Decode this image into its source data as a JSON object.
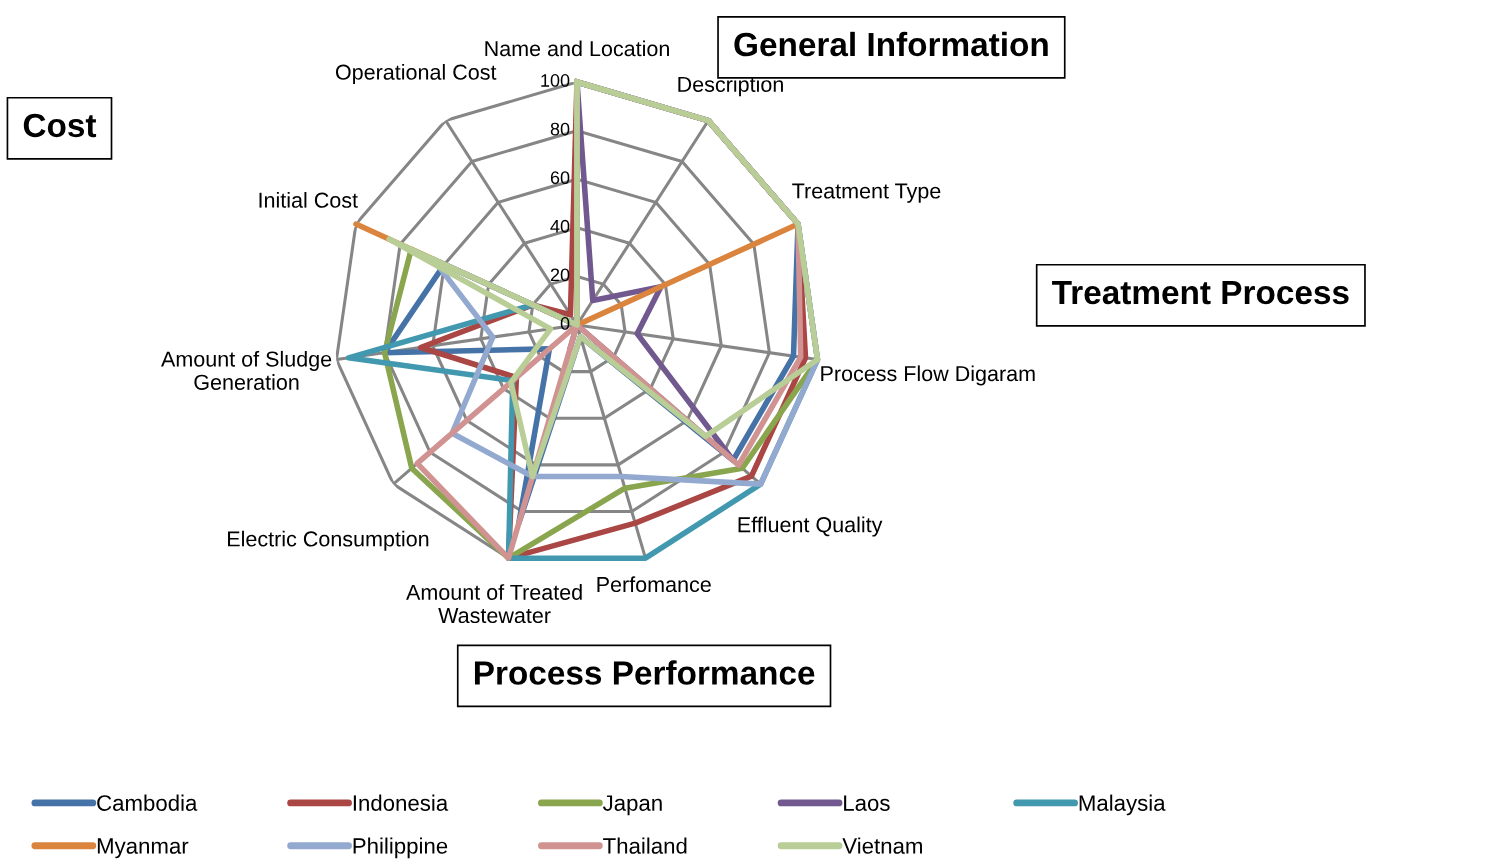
{
  "chart_data": {
    "type": "radar",
    "categories": [
      "Name and Location",
      "Description",
      "Treatment Type",
      "Process Flow Digaram",
      "Effluent Quality",
      "Perfomance",
      "Amount of Treated\nWastewater",
      "Electric Consumption",
      "Amount of Sludge\nGeneration",
      "Initial Cost",
      "Operational Cost"
    ],
    "series": [
      {
        "name": "Cambodia",
        "color": "#4572a7",
        "values": [
          100,
          100,
          100,
          90,
          85,
          5,
          85,
          15,
          80,
          60,
          0
        ]
      },
      {
        "name": "Indonesia",
        "color": "#aa4643",
        "values": [
          100,
          100,
          100,
          95,
          95,
          85,
          100,
          33,
          65,
          20,
          5
        ]
      },
      {
        "name": "Japan",
        "color": "#89a54e",
        "values": [
          100,
          100,
          100,
          100,
          90,
          70,
          100,
          90,
          80,
          75,
          0
        ]
      },
      {
        "name": "Laos",
        "color": "#71588f",
        "values": [
          100,
          12,
          38,
          25,
          85,
          0,
          10,
          0,
          0,
          0,
          0
        ]
      },
      {
        "name": "Malaysia",
        "color": "#4198af",
        "values": [
          100,
          100,
          100,
          100,
          100,
          100,
          100,
          35,
          95,
          20,
          0
        ]
      },
      {
        "name": "Myanmar",
        "color": "#db843d",
        "values": [
          0,
          0,
          100,
          0,
          0,
          0,
          0,
          0,
          0,
          100,
          0
        ]
      },
      {
        "name": "Philippine",
        "color": "#93a9cf",
        "values": [
          100,
          100,
          100,
          100,
          100,
          65,
          65,
          68,
          35,
          65,
          0
        ]
      },
      {
        "name": "Thailand",
        "color": "#d19392",
        "values": [
          100,
          100,
          100,
          93,
          88,
          0,
          100,
          87,
          0,
          0,
          0
        ]
      },
      {
        "name": "Vietnam",
        "color": "#b9cd96",
        "values": [
          100,
          100,
          100,
          100,
          70,
          5,
          65,
          36,
          11,
          85,
          0
        ]
      }
    ],
    "ylim": [
      0,
      100
    ],
    "yticks": [
      0,
      20,
      40,
      60,
      80,
      100
    ],
    "grid": true,
    "legend": "bottom",
    "annotations": [
      "General Information",
      "Cost",
      "Treatment Process",
      "Process Performance"
    ]
  }
}
